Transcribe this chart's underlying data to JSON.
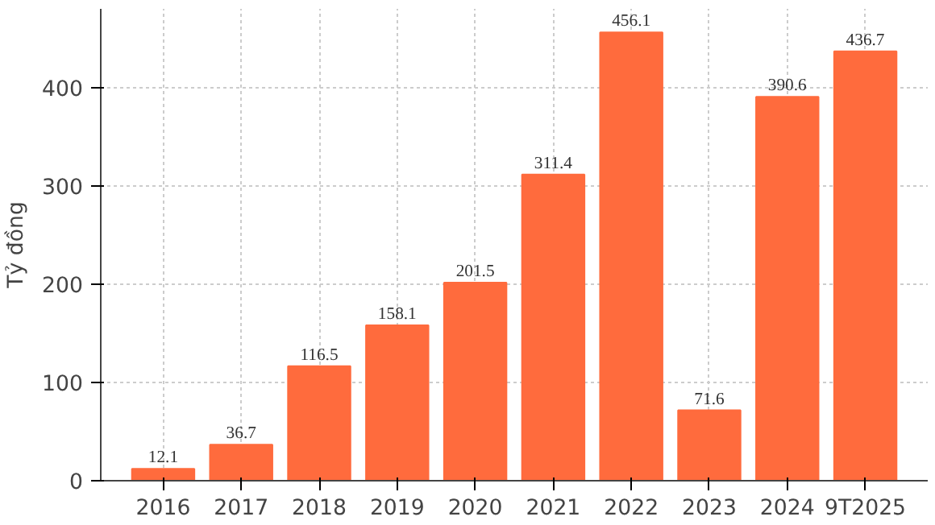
{
  "chart_data": {
    "type": "bar",
    "ylabel": "Tỷ đồng",
    "categories": [
      "2016",
      "2017",
      "2018",
      "2019",
      "2020",
      "2021",
      "2022",
      "2023",
      "2024",
      "9T2025"
    ],
    "values": [
      12.1,
      36.7,
      116.5,
      158.1,
      201.5,
      311.4,
      456.1,
      71.6,
      390.6,
      436.7
    ],
    "color": "#ff6b3d",
    "data_labels": true,
    "ylim": [
      0,
      480
    ],
    "yticks": [
      0,
      100,
      200,
      300,
      400
    ],
    "grid": true
  }
}
